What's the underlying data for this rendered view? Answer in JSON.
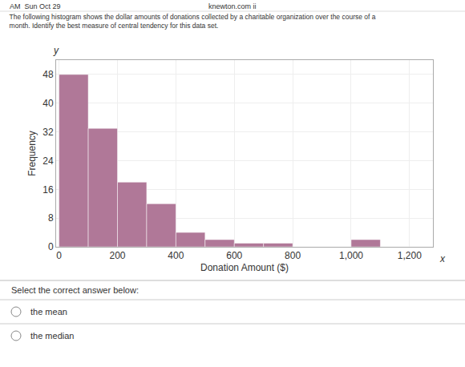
{
  "chart_data": {
    "type": "histogram",
    "title": "The following histogram shows the dollar amounts of donations collected by a charitable organization over the course of a\nmonth. Identify the best measure of central tendency for this data set.",
    "xlabel": "Donation Amount ($)",
    "ylabel": "Frequency",
    "bins": [
      0,
      100,
      200,
      300,
      400,
      500,
      600,
      700,
      800,
      900,
      1000,
      1100,
      1200
    ],
    "values": [
      48,
      33,
      18,
      12,
      4,
      2,
      1,
      1,
      0,
      0,
      2,
      0
    ],
    "color": "#b07898",
    "xlim": [
      -10,
      1280
    ],
    "xticks": [
      0,
      200,
      400,
      600,
      800,
      {
        "value": 1000,
        "label": "1,000"
      },
      {
        "value": 1200,
        "label": "1,200"
      }
    ],
    "ylim": [
      0,
      52
    ],
    "yticks": [
      0,
      8,
      16,
      24,
      32,
      40,
      48
    ],
    "grid": true,
    "annotations": [
      "y",
      "x",
      "AM  Sun Oct 29",
      "knewton.com ii",
      "Select the correct answer below:",
      "the mean",
      "the median"
    ]
  }
}
